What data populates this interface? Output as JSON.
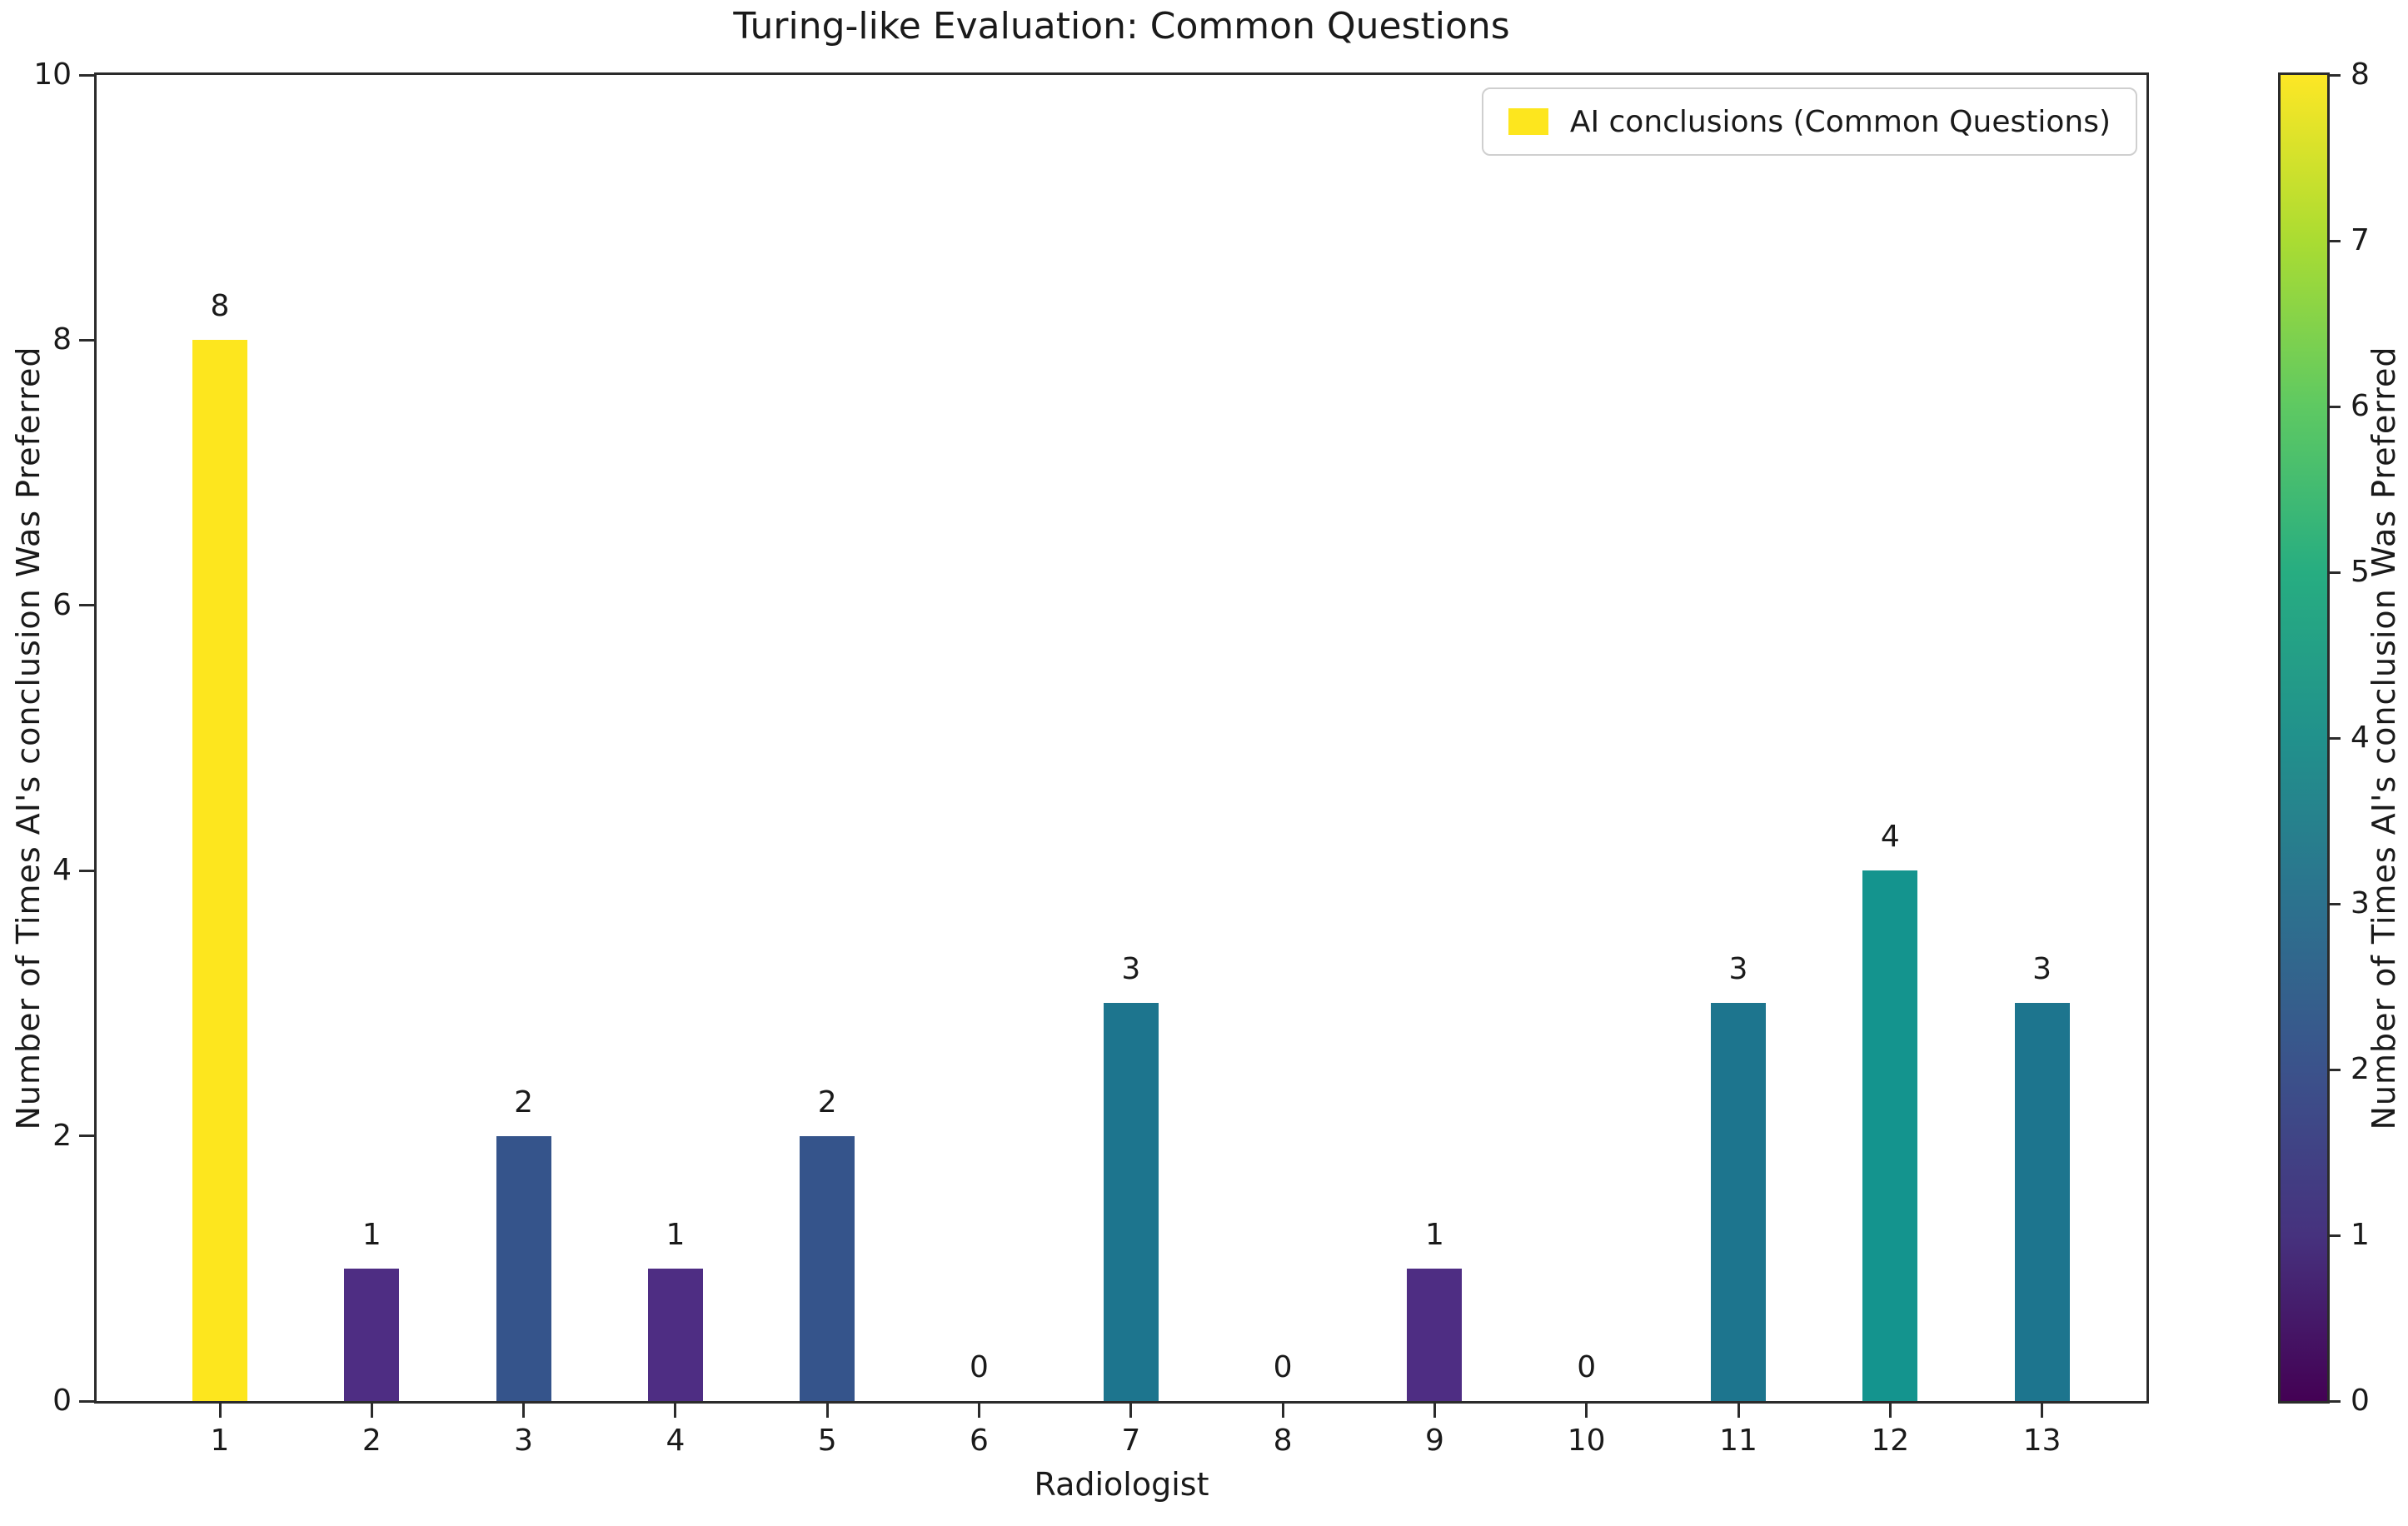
{
  "chart_data": {
    "type": "bar",
    "title": "Turing-like Evaluation: Common Questions",
    "xlabel": "Radiologist",
    "ylabel": "Number of Times AI's conclusion Was Preferred",
    "categories": [
      "1",
      "2",
      "3",
      "4",
      "5",
      "6",
      "7",
      "8",
      "9",
      "10",
      "11",
      "12",
      "13"
    ],
    "values": [
      8,
      1,
      2,
      1,
      2,
      0,
      3,
      0,
      1,
      0,
      3,
      4,
      3
    ],
    "bar_colors": [
      "#fde61e",
      "#4e2d83",
      "#35548b",
      "#4e2d83",
      "#35548b",
      "#440154",
      "#1d758e",
      "#440154",
      "#4e2d83",
      "#440154",
      "#1d758e",
      "#14948e",
      "#1d758e"
    ],
    "ylim": [
      0,
      10
    ],
    "yticks": [
      "0",
      "2",
      "4",
      "6",
      "8",
      "10"
    ],
    "grid": false,
    "legend": {
      "label": "AI conclusions (Common Questions)",
      "swatch_color": "#fde61e",
      "position": "upper right"
    },
    "colorbar": {
      "label": "Number of Times AI's conclusion Was Preferred",
      "min": 0,
      "max": 8,
      "ticks": [
        "0",
        "1",
        "2",
        "3",
        "4",
        "5",
        "6",
        "7",
        "8"
      ],
      "colormap": "viridis",
      "gradient_stops": [
        "#440154",
        "#46327e",
        "#3b528b",
        "#2c728e",
        "#21918c",
        "#27ad81",
        "#5ec962",
        "#aadc32",
        "#fde725"
      ]
    }
  }
}
